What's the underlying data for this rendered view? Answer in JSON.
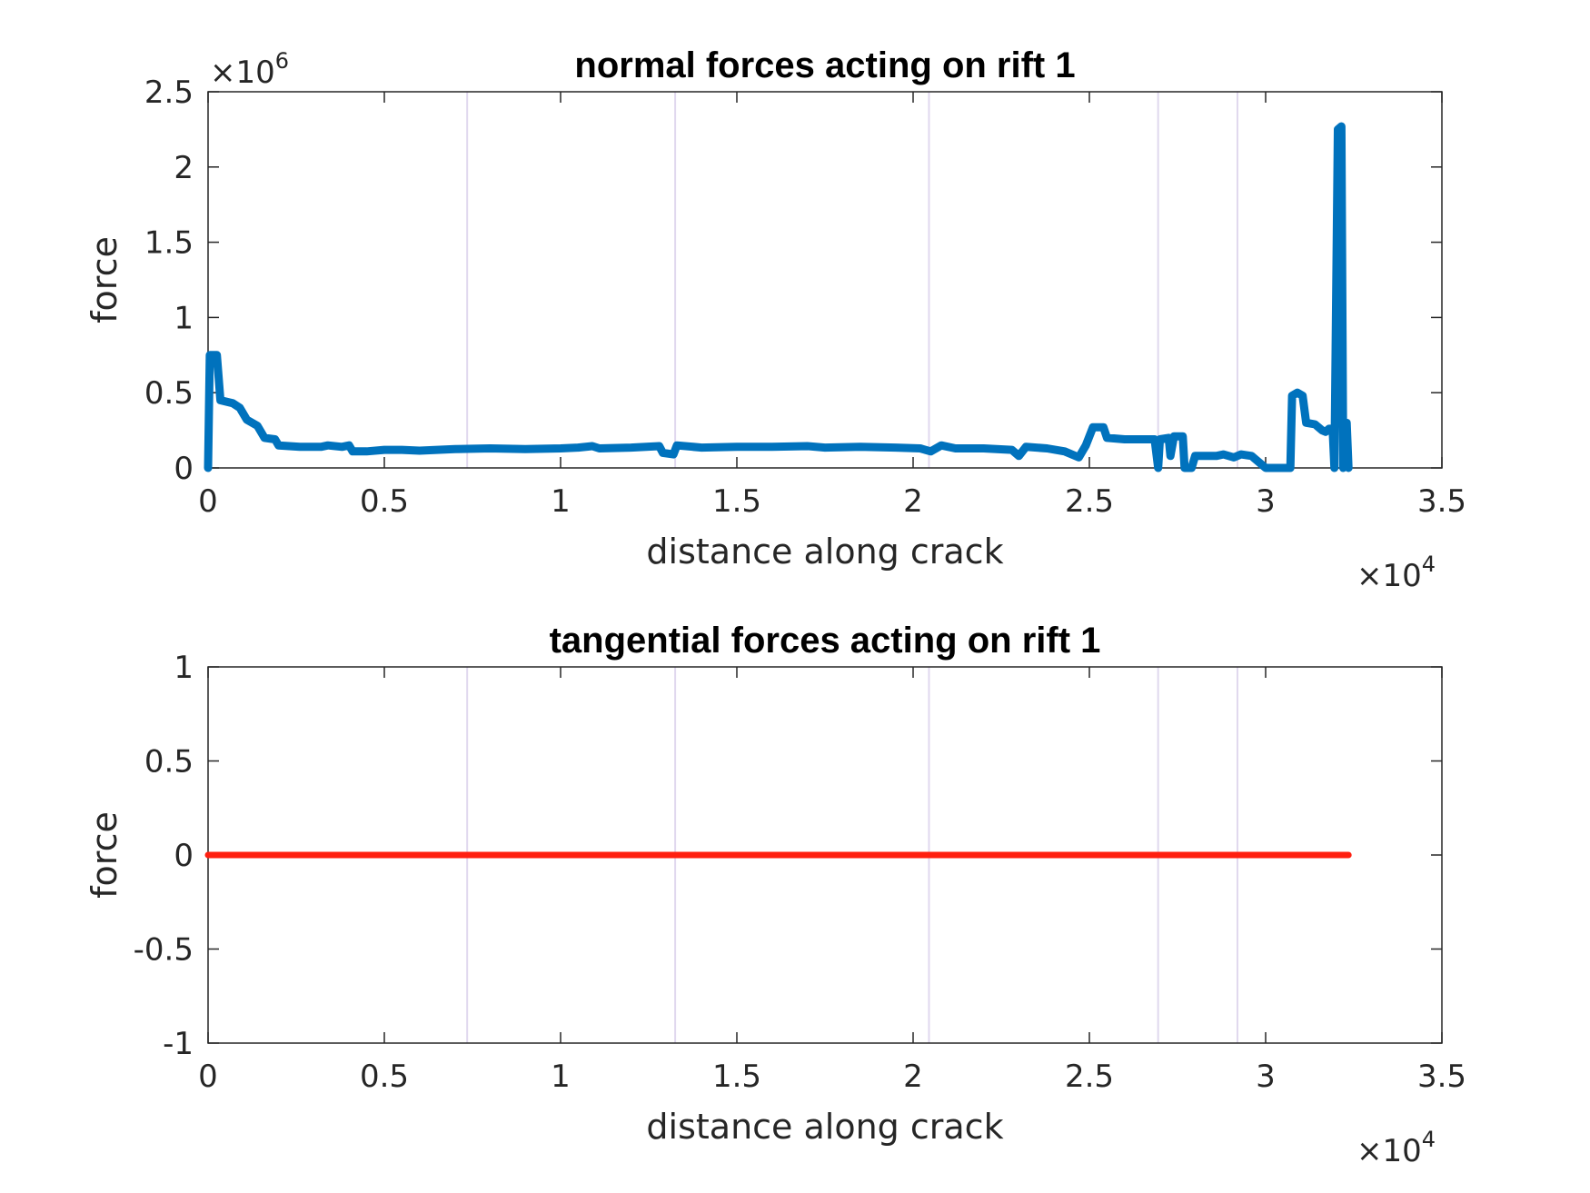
{
  "chart_data": [
    {
      "type": "line",
      "title": "normal forces acting on rift 1",
      "xlabel": "distance along crack",
      "ylabel": "force",
      "x_multiplier": "×10",
      "x_multiplier_exp": "4",
      "y_multiplier": "×10",
      "y_multiplier_exp": "6",
      "xlim": [
        0,
        35000
      ],
      "ylim": [
        0,
        2500000
      ],
      "xticks": [
        0,
        5000,
        10000,
        15000,
        20000,
        25000,
        30000,
        35000
      ],
      "xtick_labels": [
        "0",
        "0.5",
        "1",
        "1.5",
        "2",
        "2.5",
        "3",
        "3.5"
      ],
      "yticks": [
        0,
        500000,
        1000000,
        1500000,
        2000000,
        2500000
      ],
      "ytick_labels": [
        "0",
        "0.5",
        "1",
        "1.5",
        "2",
        "2.5"
      ],
      "vlines": [
        7350,
        13250,
        20450,
        26950,
        29200
      ],
      "vline_color": "#e0d8ee",
      "grid": false,
      "series": [
        {
          "color": "#0072BD",
          "points": [
            [
              0,
              0
            ],
            [
              50,
              750000
            ],
            [
              250,
              750000
            ],
            [
              350,
              450000
            ],
            [
              700,
              430000
            ],
            [
              900,
              400000
            ],
            [
              1100,
              320000
            ],
            [
              1400,
              280000
            ],
            [
              1600,
              200000
            ],
            [
              1900,
              190000
            ],
            [
              2000,
              150000
            ],
            [
              2600,
              140000
            ],
            [
              3200,
              140000
            ],
            [
              3400,
              150000
            ],
            [
              3800,
              140000
            ],
            [
              4000,
              150000
            ],
            [
              4100,
              110000
            ],
            [
              4500,
              110000
            ],
            [
              5000,
              120000
            ],
            [
              5500,
              120000
            ],
            [
              6000,
              115000
            ],
            [
              7000,
              125000
            ],
            [
              8000,
              130000
            ],
            [
              9000,
              125000
            ],
            [
              10000,
              130000
            ],
            [
              10500,
              135000
            ],
            [
              10900,
              145000
            ],
            [
              11100,
              130000
            ],
            [
              12000,
              135000
            ],
            [
              12800,
              145000
            ],
            [
              12900,
              100000
            ],
            [
              13200,
              90000
            ],
            [
              13300,
              150000
            ],
            [
              14000,
              135000
            ],
            [
              15000,
              140000
            ],
            [
              16000,
              140000
            ],
            [
              17000,
              145000
            ],
            [
              17500,
              135000
            ],
            [
              18500,
              140000
            ],
            [
              19500,
              135000
            ],
            [
              20200,
              130000
            ],
            [
              20500,
              110000
            ],
            [
              20800,
              150000
            ],
            [
              21200,
              130000
            ],
            [
              22000,
              130000
            ],
            [
              22800,
              120000
            ],
            [
              23000,
              80000
            ],
            [
              23200,
              140000
            ],
            [
              23800,
              130000
            ],
            [
              24300,
              110000
            ],
            [
              24700,
              70000
            ],
            [
              24900,
              150000
            ],
            [
              25100,
              270000
            ],
            [
              25400,
              270000
            ],
            [
              25500,
              200000
            ],
            [
              26000,
              190000
            ],
            [
              26500,
              190000
            ],
            [
              26850,
              190000
            ],
            [
              26950,
              0
            ],
            [
              27000,
              190000
            ],
            [
              27250,
              200000
            ],
            [
              27300,
              80000
            ],
            [
              27400,
              210000
            ],
            [
              27650,
              210000
            ],
            [
              27700,
              0
            ],
            [
              27900,
              0
            ],
            [
              28000,
              80000
            ],
            [
              28600,
              80000
            ],
            [
              28800,
              90000
            ],
            [
              29100,
              70000
            ],
            [
              29300,
              90000
            ],
            [
              29600,
              80000
            ],
            [
              30000,
              0
            ],
            [
              30700,
              0
            ],
            [
              30750,
              480000
            ],
            [
              30900,
              500000
            ],
            [
              31050,
              480000
            ],
            [
              31150,
              300000
            ],
            [
              31400,
              290000
            ],
            [
              31600,
              250000
            ],
            [
              31700,
              240000
            ],
            [
              31800,
              260000
            ],
            [
              31900,
              260000
            ],
            [
              31950,
              0
            ],
            [
              32050,
              2250000
            ],
            [
              32150,
              2270000
            ],
            [
              32200,
              0
            ],
            [
              32300,
              300000
            ],
            [
              32350,
              0
            ]
          ]
        }
      ]
    },
    {
      "type": "line",
      "title": "tangential forces acting on rift 1",
      "xlabel": "distance along crack",
      "ylabel": "force",
      "x_multiplier": "×10",
      "x_multiplier_exp": "4",
      "xlim": [
        0,
        35000
      ],
      "ylim": [
        -1,
        1
      ],
      "xticks": [
        0,
        5000,
        10000,
        15000,
        20000,
        25000,
        30000,
        35000
      ],
      "xtick_labels": [
        "0",
        "0.5",
        "1",
        "1.5",
        "2",
        "2.5",
        "3",
        "3.5"
      ],
      "yticks": [
        -1,
        -0.5,
        0,
        0.5,
        1
      ],
      "ytick_labels": [
        "-1",
        "-0.5",
        "0",
        "0.5",
        "1"
      ],
      "vlines": [
        7350,
        13250,
        20450,
        26950,
        29200
      ],
      "vline_color": "#e0d8ee",
      "grid": false,
      "series": [
        {
          "color": "#FF2010",
          "points": [
            [
              0,
              0
            ],
            [
              32350,
              0
            ]
          ]
        }
      ]
    }
  ]
}
